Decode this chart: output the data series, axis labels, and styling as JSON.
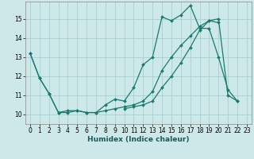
{
  "xlabel": "Humidex (Indice chaleur)",
  "background_color": "#cce8e8",
  "grid_color": "#aacfcf",
  "line_color": "#1a7a6e",
  "xlim": [
    -0.5,
    23.5
  ],
  "ylim": [
    9.5,
    15.9
  ],
  "yticks": [
    10,
    11,
    12,
    13,
    14,
    15
  ],
  "xticks": [
    0,
    1,
    2,
    3,
    4,
    5,
    6,
    7,
    8,
    9,
    10,
    11,
    12,
    13,
    14,
    15,
    16,
    17,
    18,
    19,
    20,
    21,
    22,
    23
  ],
  "series": [
    {
      "x": [
        0,
        1,
        2,
        3,
        4,
        5,
        6,
        7,
        8,
        9,
        10,
        11,
        12,
        13,
        14,
        15,
        16,
        17,
        18,
        19,
        20,
        21,
        22
      ],
      "y": [
        13.2,
        11.9,
        11.1,
        10.1,
        10.1,
        10.2,
        10.1,
        10.1,
        10.5,
        10.8,
        10.7,
        11.4,
        12.6,
        13.0,
        15.1,
        14.9,
        15.2,
        15.7,
        14.5,
        14.5,
        13.0,
        11.3,
        10.7
      ]
    },
    {
      "x": [
        0,
        1,
        2,
        3,
        4,
        5,
        6,
        7,
        8,
        9,
        10,
        11,
        12,
        13,
        14,
        15,
        16,
        17,
        18,
        19,
        20
      ],
      "y": [
        13.2,
        11.9,
        11.1,
        10.1,
        10.2,
        10.2,
        10.1,
        10.1,
        10.2,
        10.3,
        10.4,
        10.5,
        10.7,
        11.2,
        12.3,
        13.0,
        13.6,
        14.1,
        14.6,
        14.9,
        14.8
      ]
    },
    {
      "x": [
        10,
        11,
        12,
        13,
        14,
        15,
        16,
        17,
        18,
        19,
        20,
        21,
        22
      ],
      "y": [
        10.3,
        10.4,
        10.5,
        10.7,
        11.4,
        12.0,
        12.7,
        13.5,
        14.4,
        14.9,
        15.0,
        11.0,
        10.7
      ]
    }
  ]
}
